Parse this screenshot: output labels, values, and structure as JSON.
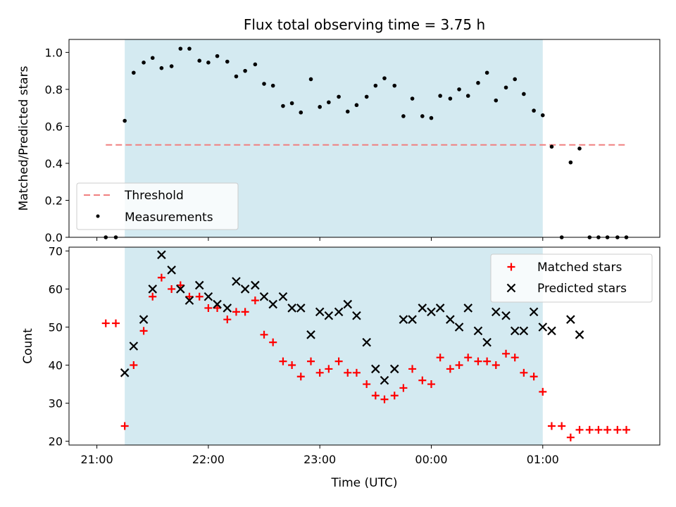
{
  "chart_data": [
    {
      "type": "scatter",
      "title": "Flux total observing time = 3.75 h",
      "ylabel": "Matched/Predicted stars",
      "xlabel": "",
      "x_unit": "hours after 21:00 UTC",
      "xlim": [
        -0.25,
        5.05
      ],
      "ylim": [
        0,
        1.07
      ],
      "yticks": [
        0.0,
        0.2,
        0.4,
        0.6,
        0.8,
        1.0
      ],
      "ytick_labels": [
        "0.0",
        "0.2",
        "0.4",
        "0.6",
        "0.8",
        "1.0"
      ],
      "observing_window": [
        0.25,
        4.0
      ],
      "threshold": {
        "name": "Threshold",
        "value": 0.5,
        "x_range": [
          0.08,
          4.75
        ],
        "color": "#f08080"
      },
      "legend": {
        "placement": "lower-left",
        "entries": [
          "Threshold",
          "Measurements"
        ]
      },
      "series": [
        {
          "name": "Measurements",
          "color": "#000000",
          "points": [
            [
              0.08,
              0
            ],
            [
              0.17,
              0
            ],
            [
              0.25,
              0.63
            ],
            [
              0.33,
              0.89
            ],
            [
              0.42,
              0.945
            ],
            [
              0.5,
              0.97
            ],
            [
              0.58,
              0.915
            ],
            [
              0.67,
              0.925
            ],
            [
              0.75,
              1.02
            ],
            [
              0.83,
              1.02
            ],
            [
              0.92,
              0.955
            ],
            [
              1.0,
              0.945
            ],
            [
              1.08,
              0.98
            ],
            [
              1.17,
              0.95
            ],
            [
              1.25,
              0.87
            ],
            [
              1.33,
              0.9
            ],
            [
              1.42,
              0.935
            ],
            [
              1.5,
              0.83
            ],
            [
              1.58,
              0.82
            ],
            [
              1.67,
              0.71
            ],
            [
              1.75,
              0.725
            ],
            [
              1.83,
              0.675
            ],
            [
              1.92,
              0.855
            ],
            [
              2.0,
              0.705
            ],
            [
              2.08,
              0.73
            ],
            [
              2.17,
              0.76
            ],
            [
              2.25,
              0.68
            ],
            [
              2.33,
              0.715
            ],
            [
              2.42,
              0.76
            ],
            [
              2.5,
              0.82
            ],
            [
              2.58,
              0.86
            ],
            [
              2.67,
              0.82
            ],
            [
              2.75,
              0.655
            ],
            [
              2.83,
              0.75
            ],
            [
              2.92,
              0.655
            ],
            [
              3.0,
              0.645
            ],
            [
              3.08,
              0.765
            ],
            [
              3.17,
              0.75
            ],
            [
              3.25,
              0.8
            ],
            [
              3.33,
              0.765
            ],
            [
              3.42,
              0.835
            ],
            [
              3.5,
              0.89
            ],
            [
              3.58,
              0.74
            ],
            [
              3.67,
              0.81
            ],
            [
              3.75,
              0.855
            ],
            [
              3.83,
              0.775
            ],
            [
              3.92,
              0.685
            ],
            [
              4.0,
              0.66
            ],
            [
              4.08,
              0.49
            ],
            [
              4.17,
              0
            ],
            [
              4.25,
              0.405
            ],
            [
              4.33,
              0.48
            ],
            [
              4.42,
              0
            ],
            [
              4.5,
              0
            ],
            [
              4.58,
              0
            ],
            [
              4.67,
              0
            ],
            [
              4.75,
              0
            ]
          ]
        }
      ]
    },
    {
      "type": "scatter",
      "title": "",
      "ylabel": "Count",
      "xlabel": "Time (UTC)",
      "x_unit": "hours after 21:00 UTC",
      "xlim": [
        -0.25,
        5.05
      ],
      "ylim": [
        19,
        71
      ],
      "yticks": [
        20,
        30,
        40,
        50,
        60,
        70
      ],
      "ytick_labels": [
        "20",
        "30",
        "40",
        "50",
        "60",
        "70"
      ],
      "xticks": [
        0,
        1,
        2,
        3,
        4
      ],
      "xtick_labels": [
        "21:00",
        "22:00",
        "23:00",
        "00:00",
        "01:00"
      ],
      "observing_window": [
        0.25,
        4.0
      ],
      "legend": {
        "placement": "top-right",
        "entries": [
          "Matched stars",
          "Predicted stars"
        ]
      },
      "series": [
        {
          "name": "Matched stars",
          "marker": "plus",
          "color": "#ff0000",
          "points": [
            [
              0.08,
              51
            ],
            [
              0.17,
              51
            ],
            [
              0.25,
              24
            ],
            [
              0.33,
              40
            ],
            [
              0.42,
              49
            ],
            [
              0.5,
              58
            ],
            [
              0.58,
              63
            ],
            [
              0.67,
              60
            ],
            [
              0.75,
              61
            ],
            [
              0.83,
              58
            ],
            [
              0.92,
              58
            ],
            [
              1.0,
              55
            ],
            [
              1.08,
              55
            ],
            [
              1.17,
              52
            ],
            [
              1.25,
              54
            ],
            [
              1.33,
              54
            ],
            [
              1.42,
              57
            ],
            [
              1.5,
              48
            ],
            [
              1.58,
              46
            ],
            [
              1.67,
              41
            ],
            [
              1.75,
              40
            ],
            [
              1.83,
              37
            ],
            [
              1.92,
              41
            ],
            [
              2.0,
              38
            ],
            [
              2.08,
              39
            ],
            [
              2.17,
              41
            ],
            [
              2.25,
              38
            ],
            [
              2.33,
              38
            ],
            [
              2.42,
              35
            ],
            [
              2.5,
              32
            ],
            [
              2.58,
              31
            ],
            [
              2.67,
              32
            ],
            [
              2.75,
              34
            ],
            [
              2.83,
              39
            ],
            [
              2.92,
              36
            ],
            [
              3.0,
              35
            ],
            [
              3.08,
              42
            ],
            [
              3.17,
              39
            ],
            [
              3.25,
              40
            ],
            [
              3.33,
              42
            ],
            [
              3.42,
              41
            ],
            [
              3.5,
              41
            ],
            [
              3.58,
              40
            ],
            [
              3.67,
              43
            ],
            [
              3.75,
              42
            ],
            [
              3.83,
              38
            ],
            [
              3.92,
              37
            ],
            [
              4.0,
              33
            ],
            [
              4.08,
              24
            ],
            [
              4.17,
              24
            ],
            [
              4.25,
              21
            ],
            [
              4.33,
              23
            ],
            [
              4.42,
              23
            ],
            [
              4.5,
              23
            ],
            [
              4.58,
              23
            ],
            [
              4.67,
              23
            ],
            [
              4.75,
              23
            ]
          ]
        },
        {
          "name": "Predicted stars",
          "marker": "x",
          "color": "#000000",
          "points": [
            [
              0.25,
              38
            ],
            [
              0.33,
              45
            ],
            [
              0.42,
              52
            ],
            [
              0.5,
              60
            ],
            [
              0.58,
              69
            ],
            [
              0.67,
              65
            ],
            [
              0.75,
              60
            ],
            [
              0.83,
              57
            ],
            [
              0.92,
              61
            ],
            [
              1.0,
              58
            ],
            [
              1.08,
              56
            ],
            [
              1.17,
              55
            ],
            [
              1.25,
              62
            ],
            [
              1.33,
              60
            ],
            [
              1.42,
              61
            ],
            [
              1.5,
              58
            ],
            [
              1.58,
              56
            ],
            [
              1.67,
              58
            ],
            [
              1.75,
              55
            ],
            [
              1.83,
              55
            ],
            [
              1.92,
              48
            ],
            [
              2.0,
              54
            ],
            [
              2.08,
              53
            ],
            [
              2.17,
              54
            ],
            [
              2.25,
              56
            ],
            [
              2.33,
              53
            ],
            [
              2.42,
              46
            ],
            [
              2.5,
              39
            ],
            [
              2.58,
              36
            ],
            [
              2.67,
              39
            ],
            [
              2.75,
              52
            ],
            [
              2.83,
              52
            ],
            [
              2.92,
              55
            ],
            [
              3.0,
              54
            ],
            [
              3.08,
              55
            ],
            [
              3.17,
              52
            ],
            [
              3.25,
              50
            ],
            [
              3.33,
              55
            ],
            [
              3.42,
              49
            ],
            [
              3.5,
              46
            ],
            [
              3.58,
              54
            ],
            [
              3.67,
              53
            ],
            [
              3.75,
              49
            ],
            [
              3.83,
              49
            ],
            [
              3.92,
              54
            ],
            [
              4.0,
              50
            ],
            [
              4.08,
              49
            ],
            [
              4.25,
              52
            ],
            [
              4.33,
              48
            ]
          ]
        }
      ]
    }
  ],
  "colors": {
    "observing_window": "#d4eaf1",
    "threshold": "#f08080",
    "matched": "#ff0000",
    "predicted": "#000000"
  }
}
